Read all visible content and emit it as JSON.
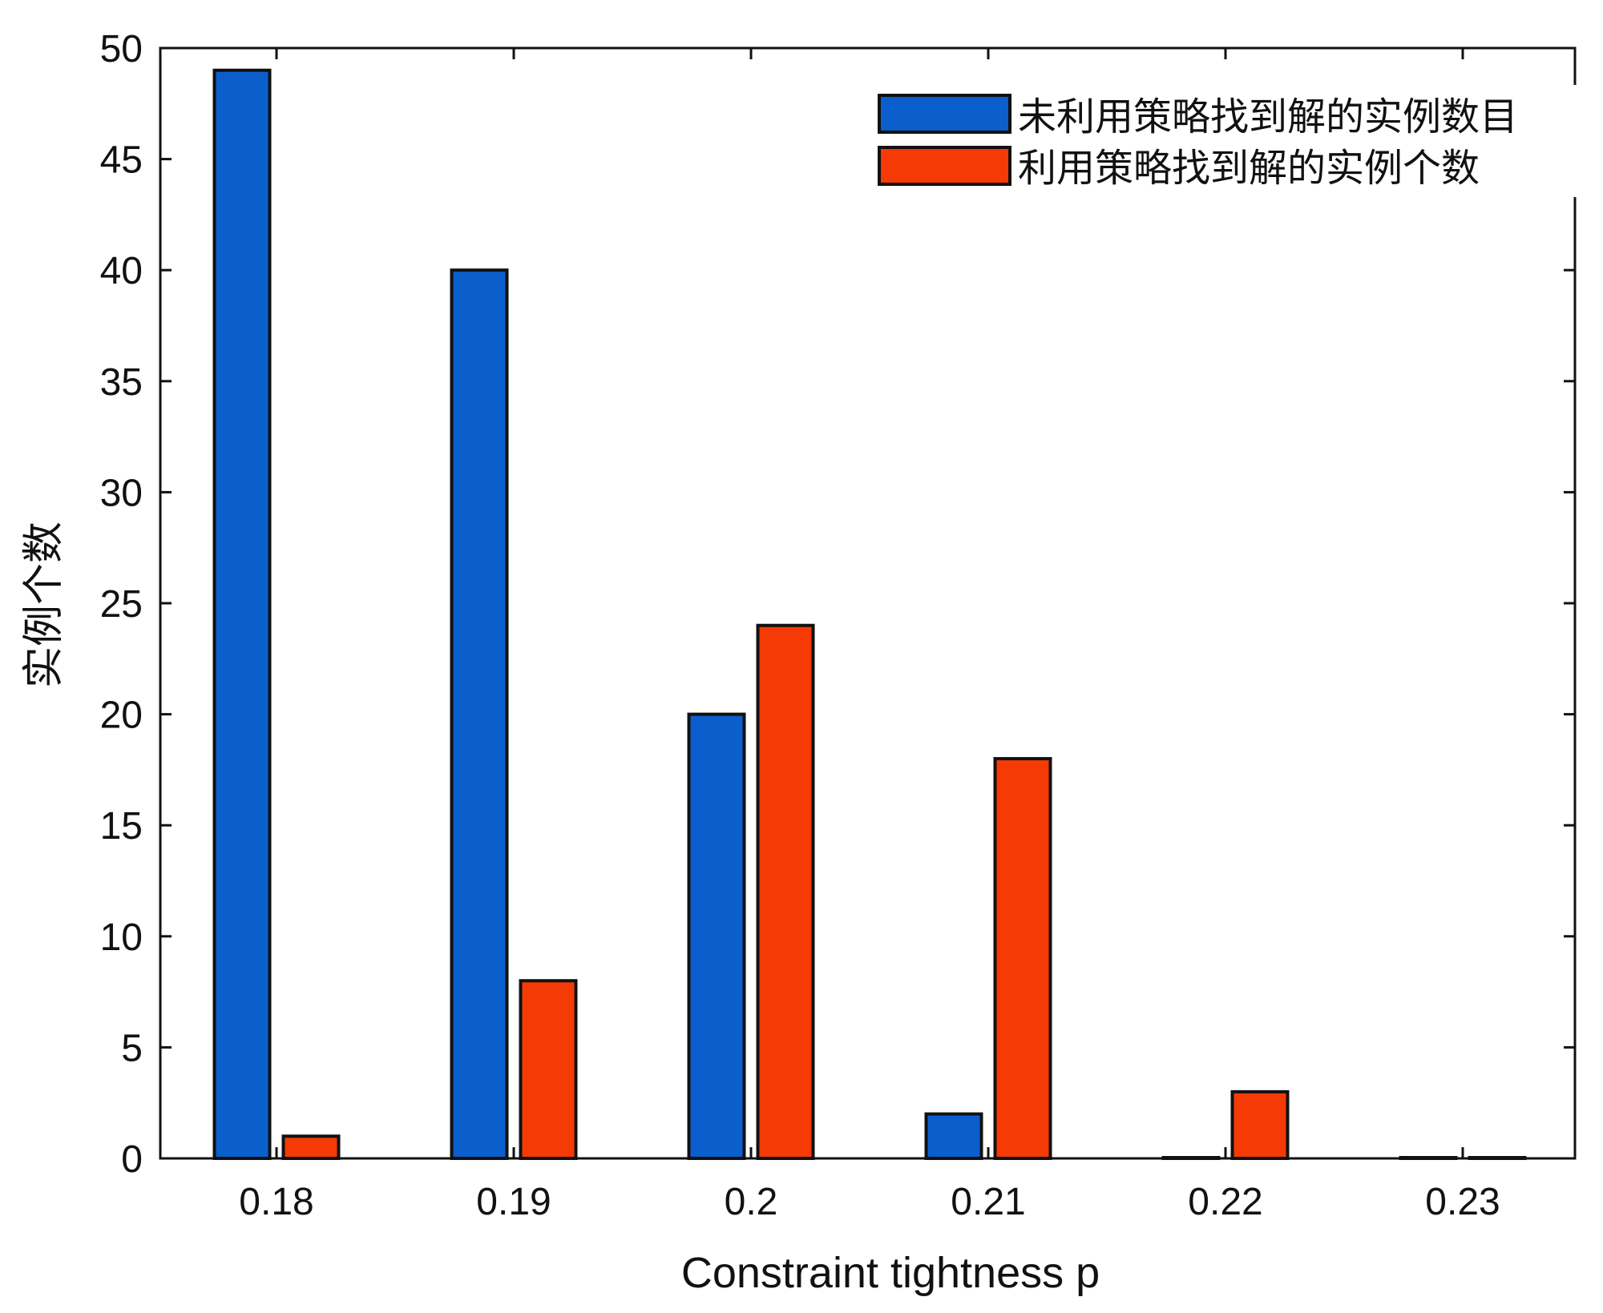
{
  "chart_data": {
    "type": "bar",
    "categories": [
      "0.18",
      "0.19",
      "0.2",
      "0.21",
      "0.22",
      "0.23"
    ],
    "series": [
      {
        "name": "未利用策略找到解的实例数目",
        "color": "#0A5FCC",
        "values": [
          49,
          40,
          20,
          2,
          0,
          0
        ]
      },
      {
        "name": "利用策略找到解的实例个数",
        "color": "#F53A06",
        "values": [
          1,
          8,
          24,
          18,
          3,
          0
        ]
      }
    ],
    "xlabel": "Constraint tightness p",
    "ylabel": "实例个数",
    "ylim": [
      0,
      50
    ],
    "yticks": [
      "0",
      "5",
      "10",
      "15",
      "20",
      "25",
      "30",
      "35",
      "40",
      "45",
      "50"
    ],
    "grid": false,
    "legend_position": "top-right"
  }
}
